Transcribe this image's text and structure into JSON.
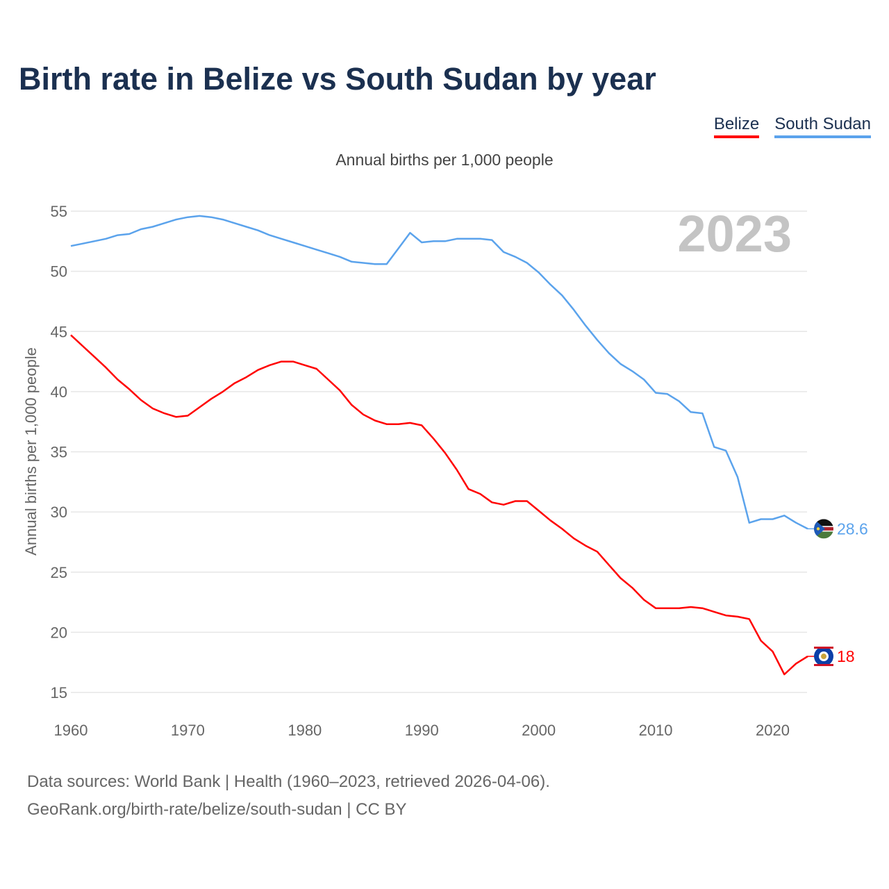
{
  "title": "Birth rate in Belize vs South Sudan by year",
  "legend": [
    {
      "name": "Belize",
      "color": "#ff0000"
    },
    {
      "name": "South Sudan",
      "color": "#5ba3ec"
    }
  ],
  "source_line1": "Data sources: World Bank | Health (1960–2023, retrieved 2026-04-06).",
  "source_line2": "GeoRank.org/birth-rate/belize/south-sudan | CC BY",
  "chart_data": {
    "type": "line",
    "title": "Birth rate in Belize vs South Sudan by year",
    "subtitle": "Annual births per 1,000 people",
    "ylabel": "Annual births per 1,000 people",
    "xlabel": "",
    "year_watermark": "2023",
    "xlim": [
      1960,
      2023
    ],
    "ylim": [
      15,
      55
    ],
    "xticks": [
      1960,
      1970,
      1980,
      1990,
      2000,
      2010,
      2020
    ],
    "yticks": [
      15,
      20,
      25,
      30,
      35,
      40,
      45,
      50,
      55
    ],
    "grid": true,
    "legend_position": "top-right",
    "x": [
      1960,
      1961,
      1962,
      1963,
      1964,
      1965,
      1966,
      1967,
      1968,
      1969,
      1970,
      1971,
      1972,
      1973,
      1974,
      1975,
      1976,
      1977,
      1978,
      1979,
      1980,
      1981,
      1982,
      1983,
      1984,
      1985,
      1986,
      1987,
      1988,
      1989,
      1990,
      1991,
      1992,
      1993,
      1994,
      1995,
      1996,
      1997,
      1998,
      1999,
      2000,
      2001,
      2002,
      2003,
      2004,
      2005,
      2006,
      2007,
      2008,
      2009,
      2010,
      2011,
      2012,
      2013,
      2014,
      2015,
      2016,
      2017,
      2018,
      2019,
      2020,
      2021,
      2022,
      2023
    ],
    "series": [
      {
        "name": "Belize",
        "color": "#ff0000",
        "end_label": "18",
        "values": [
          44.7,
          43.8,
          42.9,
          42.0,
          41.0,
          40.2,
          39.3,
          38.6,
          38.2,
          37.9,
          38.0,
          38.7,
          39.4,
          40.0,
          40.7,
          41.2,
          41.8,
          42.2,
          42.5,
          42.5,
          42.2,
          41.9,
          41.0,
          40.1,
          38.9,
          38.1,
          37.6,
          37.3,
          37.3,
          37.4,
          37.2,
          36.1,
          34.9,
          33.5,
          31.9,
          31.5,
          30.8,
          30.6,
          30.9,
          30.9,
          30.1,
          29.3,
          28.6,
          27.8,
          27.2,
          26.7,
          25.6,
          24.5,
          23.7,
          22.7,
          22.0,
          22.0,
          22.0,
          22.1,
          22.0,
          21.7,
          21.4,
          21.3,
          21.1,
          19.3,
          18.4,
          16.5,
          17.4,
          18.0
        ]
      },
      {
        "name": "South Sudan",
        "color": "#5ba3ec",
        "end_label": "28.6",
        "values": [
          52.1,
          52.3,
          52.5,
          52.7,
          53.0,
          53.1,
          53.5,
          53.7,
          54.0,
          54.3,
          54.5,
          54.6,
          54.5,
          54.3,
          54.0,
          53.7,
          53.4,
          53.0,
          52.7,
          52.4,
          52.1,
          51.8,
          51.5,
          51.2,
          50.8,
          50.7,
          50.6,
          50.6,
          51.9,
          53.2,
          52.4,
          52.5,
          52.5,
          52.7,
          52.7,
          52.7,
          52.6,
          51.6,
          51.2,
          50.7,
          49.9,
          48.9,
          48.0,
          46.8,
          45.5,
          44.3,
          43.2,
          42.3,
          41.7,
          41.0,
          39.9,
          39.8,
          39.2,
          38.3,
          38.2,
          35.4,
          35.1,
          32.9,
          29.1,
          29.4,
          29.4,
          29.7,
          29.1,
          28.6
        ]
      }
    ]
  }
}
